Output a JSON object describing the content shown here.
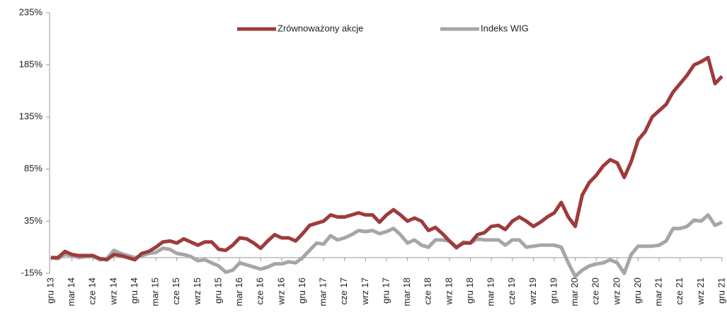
{
  "chart_data": {
    "type": "line",
    "categories": [
      "gru 13",
      null,
      null,
      "mar 14",
      null,
      null,
      "cze 14",
      null,
      null,
      "wrz 14",
      null,
      null,
      "gru 14",
      null,
      null,
      "mar 15",
      null,
      null,
      "cze 15",
      null,
      null,
      "wrz 15",
      null,
      null,
      "gru 15",
      null,
      null,
      "mar 16",
      null,
      null,
      "cze 16",
      null,
      null,
      "wrz 16",
      null,
      null,
      "gru 16",
      null,
      null,
      "mar 17",
      null,
      null,
      "cze 17",
      null,
      null,
      "wrz 17",
      null,
      null,
      "gru 17",
      null,
      null,
      "mar 18",
      null,
      null,
      "cze 18",
      null,
      null,
      "wrz 18",
      null,
      null,
      "gru 18",
      null,
      null,
      "mar 19",
      null,
      null,
      "cze 19",
      null,
      null,
      "wrz 19",
      null,
      null,
      "gru 19",
      null,
      null,
      "mar 20",
      null,
      null,
      "cze 20",
      null,
      null,
      "wrz 20",
      null,
      null,
      "gru 20",
      null,
      null,
      "mar 21",
      null,
      null,
      "cze 21",
      null,
      null,
      "wrz 21",
      null,
      null,
      "gru 21"
    ],
    "series": [
      {
        "name": "Zrównoważony akcje",
        "color": "#9e3b3b",
        "values": [
          0,
          0,
          6,
          3,
          2,
          2,
          2,
          -1,
          -2,
          3,
          2,
          0,
          -2,
          4,
          6,
          10,
          15,
          16,
          14,
          18,
          15,
          12,
          15,
          15,
          8,
          7,
          12,
          19,
          18,
          14,
          9,
          16,
          22,
          19,
          19,
          16,
          23,
          31,
          33,
          35,
          41,
          39,
          39,
          41,
          43,
          41,
          41,
          34,
          41,
          46,
          41,
          35,
          38,
          35,
          26,
          29,
          23,
          16,
          10,
          14,
          14,
          22,
          24,
          30,
          31,
          27,
          35,
          39,
          35,
          30,
          34,
          39,
          43,
          53,
          39,
          30,
          60,
          72,
          79,
          88,
          94,
          91,
          77,
          92,
          113,
          121,
          135,
          141,
          147,
          159,
          167,
          175,
          185,
          188,
          192,
          167,
          174
        ]
      },
      {
        "name": "Indeks WIG",
        "color": "#a6a6a6",
        "values": [
          0,
          -1,
          3,
          2,
          0,
          1,
          1,
          -2,
          -1,
          7,
          4,
          2,
          0,
          2,
          4,
          5,
          9,
          8,
          4,
          3,
          1,
          -3,
          -2,
          -5,
          -8,
          -14,
          -12,
          -5,
          -7,
          -9,
          -11,
          -9,
          -6,
          -6,
          -4,
          -5,
          0,
          7,
          14,
          13,
          21,
          17,
          19,
          22,
          26,
          25,
          26,
          23,
          25,
          28,
          22,
          14,
          17,
          12,
          10,
          17,
          17,
          16,
          9,
          15,
          14,
          18,
          17,
          17,
          17,
          12,
          17,
          17,
          10,
          11,
          12,
          12,
          12,
          10,
          -5,
          -18,
          -12,
          -8,
          -6,
          -5,
          -2,
          -5,
          -15,
          3,
          11,
          11,
          11,
          12,
          16,
          28,
          28,
          30,
          36,
          35,
          41,
          31,
          34
        ]
      }
    ],
    "ylim": [
      -15,
      235
    ],
    "yticks": [
      {
        "value": -15,
        "label": "-15%"
      },
      {
        "value": 35,
        "label": "35%"
      },
      {
        "value": 85,
        "label": "85%"
      },
      {
        "value": 135,
        "label": "135%"
      },
      {
        "value": 185,
        "label": "185%"
      },
      {
        "value": 235,
        "label": "235%"
      }
    ],
    "legend": "top"
  }
}
